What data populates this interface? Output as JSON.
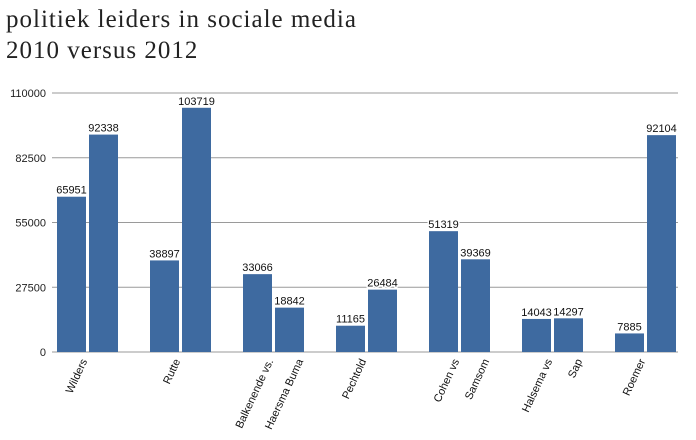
{
  "chart_data": {
    "type": "bar",
    "title_lines": [
      "politiek leiders in sociale media",
      "2010 versus 2012"
    ],
    "categories": [
      "Wilders",
      "Rutte",
      "Balkenende vs. Haersma Buma",
      "Pechtold",
      "Cohen vs Samsom",
      "Halsema vs Sap",
      "Roemer"
    ],
    "category_labels": [
      [
        "Wilders"
      ],
      [
        "Rutte"
      ],
      [
        "Balkenende vs.",
        "Haersma Buma"
      ],
      [
        "Pechtold"
      ],
      [
        "Cohen vs",
        "Samsom"
      ],
      [
        "Halsema vs",
        "Sap"
      ],
      [
        "Roemer"
      ]
    ],
    "series": [
      {
        "values": [
          65951,
          38897,
          33066,
          11165,
          51319,
          14043,
          7885
        ]
      },
      {
        "values": [
          92338,
          103719,
          18842,
          26484,
          39369,
          14297,
          92104
        ]
      }
    ],
    "ylim": [
      0,
      110000
    ],
    "yticks": [
      0,
      27500,
      55000,
      82500,
      110000
    ],
    "grid": true,
    "legend": "none",
    "bar_color": "#3e6aa0",
    "grid_color": "#9a9a9a"
  }
}
